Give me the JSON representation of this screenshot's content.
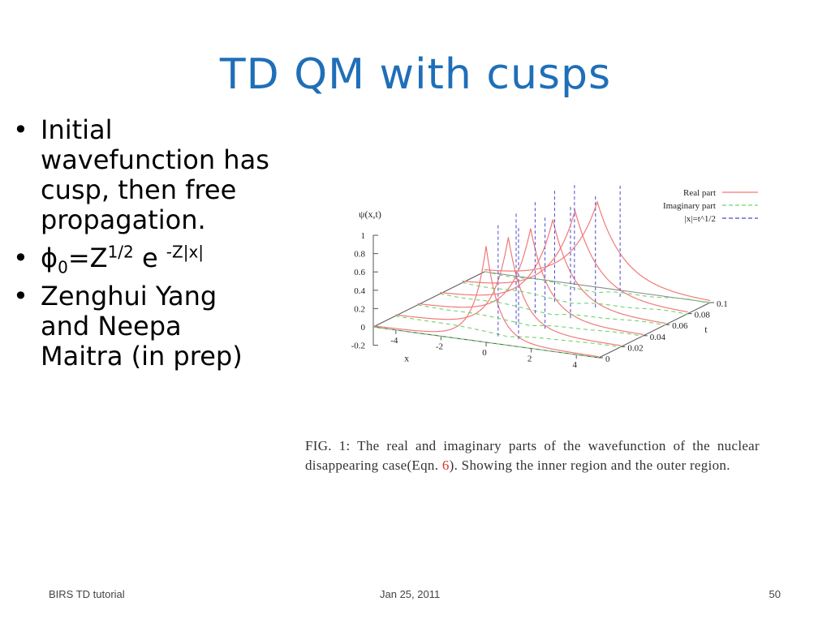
{
  "slide": {
    "title": "TD QM with cusps",
    "bullets": [
      "Initial wavefunction has cusp, then free propagation.",
      "Zenghui Yang and Neepa Maitra (in prep)"
    ],
    "formula": {
      "phi": "ϕ",
      "sub": "0",
      "eq": "=Z",
      "sup": "1/2",
      "e": " e ",
      "exp": "-Z|x|"
    }
  },
  "figure": {
    "caption_before": "FIG. 1: The real and imaginary parts of the wavefunction of the nuclear disappearing case(Eqn. ",
    "caption_ref": "6",
    "caption_after": "). Showing the inner region and the outer region."
  },
  "chart_data": {
    "type": "line",
    "zlabel": "ψ(x,t)",
    "xlabel": "x",
    "ylabel": "t",
    "z_ticks": [
      "1",
      "0.8",
      "0.6",
      "0.4",
      "0.2",
      "0",
      "-0.2"
    ],
    "x_ticks": [
      "-4",
      "-2",
      "0",
      "2",
      "4"
    ],
    "t_ticks": [
      "0",
      "0.02",
      "0.04",
      "0.06",
      "0.08",
      "0.1"
    ],
    "series": [
      {
        "name": "Real part",
        "color": "#f07a7a",
        "dash": "solid"
      },
      {
        "name": "Imaginary part",
        "color": "#6fd36f",
        "dash": "dashed"
      },
      {
        "name": "|x|=t^1/2",
        "color": "#4a4acc",
        "dash": "dashed"
      }
    ],
    "slices_t": [
      0,
      0.02,
      0.04,
      0.06,
      0.08,
      0.1
    ]
  },
  "footer": {
    "left": "BIRS TD tutorial",
    "center": "Jan 25, 2011",
    "right": "50"
  },
  "colors": {
    "title": "#1f6fb8",
    "caption_ref": "#d23a2a"
  }
}
